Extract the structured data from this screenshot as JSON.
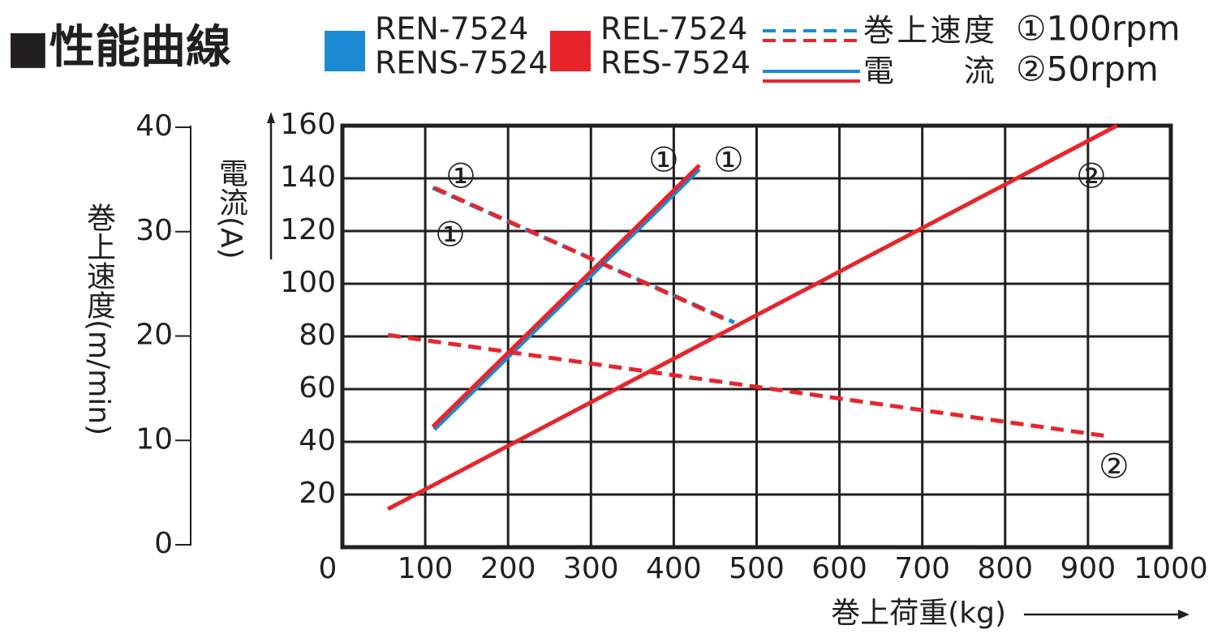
{
  "chart_data": {
    "type": "line",
    "title": "■性能曲線",
    "xlabel": "巻上荷重(kg)",
    "ylabel": "電流(A)",
    "y2label": "巻上速度(m/min)",
    "xlim": [
      0,
      1000
    ],
    "xticks": [
      0,
      100,
      200,
      300,
      400,
      500,
      600,
      700,
      800,
      900,
      1000
    ],
    "ylim": [
      0,
      160
    ],
    "yticks": [
      20,
      40,
      60,
      80,
      100,
      120,
      140,
      160
    ],
    "y2lim": [
      0,
      40
    ],
    "y2ticks": [
      0,
      10,
      20,
      30,
      40
    ],
    "grid": true,
    "legend": [
      {
        "color": "#1a8ad4",
        "labels": [
          "REN-7524",
          "RENS-7524"
        ]
      },
      {
        "color": "#e8242b",
        "labels": [
          "REL-7524",
          "RES-7524"
        ]
      }
    ],
    "style_legend": [
      {
        "style": "dashed",
        "label": "巻上速度"
      },
      {
        "style": "solid",
        "label": "電　流"
      }
    ],
    "speed_legend": [
      "①100rpm",
      "②50rpm"
    ],
    "series": [
      {
        "color": "#1a8ad4",
        "style": "solid",
        "axis": "y",
        "x": [
          111,
          431
        ],
        "values": [
          44.7,
          143.5
        ]
      },
      {
        "color": "#e8242b",
        "style": "solid",
        "axis": "y",
        "x": [
          109,
          431
        ],
        "values": [
          45.7,
          145
        ]
      },
      {
        "color": "#e8242b",
        "style": "solid",
        "axis": "y",
        "x": [
          55,
          935
        ],
        "values": [
          14.5,
          160
        ]
      },
      {
        "color": "#1a8ad4",
        "style": "dashed",
        "axis": "y2",
        "x": [
          109,
          473
        ],
        "values": [
          34.2,
          21.3
        ]
      },
      {
        "color": "#e8242b",
        "style": "dashed",
        "axis": "y2",
        "x": [
          111,
          468
        ],
        "values": [
          34.2,
          21.4
        ]
      },
      {
        "color": "#e8242b",
        "style": "dashed",
        "axis": "y2",
        "x": [
          55,
          924
        ],
        "values": [
          20.1,
          10.4
        ]
      }
    ],
    "annotations": [
      "①",
      "①",
      "①",
      "①",
      "②",
      "②"
    ]
  }
}
